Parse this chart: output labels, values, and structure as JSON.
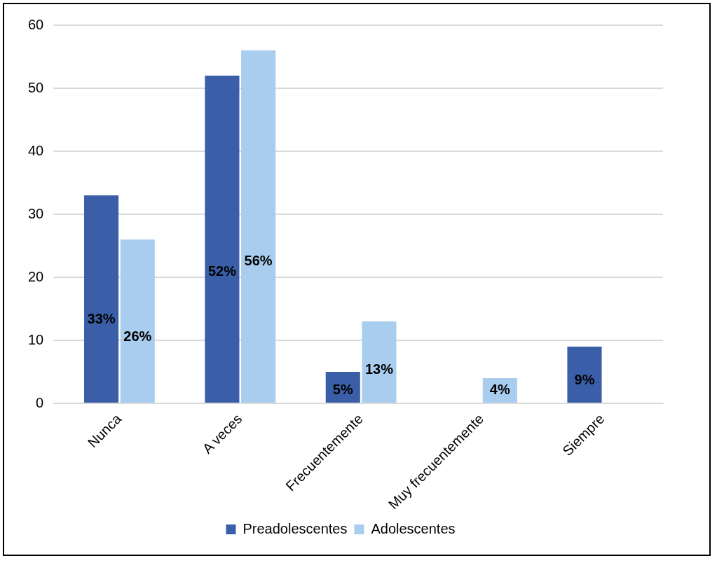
{
  "chart_data": {
    "type": "bar",
    "categories": [
      "Nunca",
      "A veces",
      "Frecuentemente",
      "Muy frecuentemente",
      "Siempre"
    ],
    "series": [
      {
        "name": "Preadolescentes",
        "color": "#3a5fa8",
        "values": [
          33,
          52,
          5,
          null,
          9
        ],
        "value_labels": [
          "33%",
          "52%",
          "5%",
          null,
          "9%"
        ]
      },
      {
        "name": "Adolescentes",
        "color": "#a9cdee",
        "values": [
          26,
          56,
          13,
          4,
          null
        ],
        "value_labels": [
          "26%",
          "56%",
          "13%",
          "4%",
          null
        ]
      }
    ],
    "ylim": [
      0,
      60
    ],
    "yticks": [
      0,
      10,
      20,
      30,
      40,
      50,
      60
    ],
    "grid": "y",
    "legend": "bottom"
  }
}
